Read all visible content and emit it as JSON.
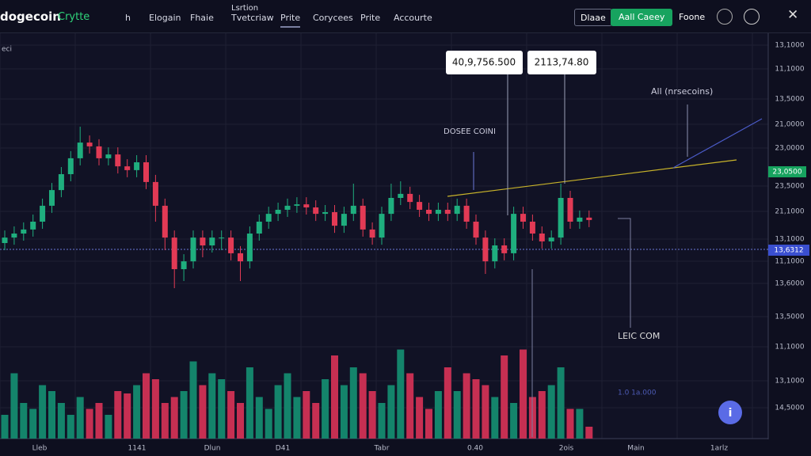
{
  "header": {
    "logo": "dogecoin",
    "brand": "Crytte",
    "nav": [
      "h",
      "Elogain",
      "Fhaie",
      "Tvetcriaw",
      "Prite",
      "Corycees",
      "Prite",
      "Accourte"
    ],
    "nav_caption": "Lsrtion",
    "buttons": [
      "Dlaae",
      "Aall Caeey",
      "Foone"
    ]
  },
  "corner_label": "eci",
  "price_axis": {
    "labels": [
      "13,1000",
      "11,1000",
      "13,5000",
      "21,0000",
      "23,0000",
      "23,5000",
      "21,1000",
      "13,1000",
      "11,1000",
      "13,6000",
      "13,5000",
      "11,1000",
      "13,1000",
      "14,5000"
    ],
    "current_tag": "23,0500",
    "line_tag": "13,6312"
  },
  "time_axis": [
    "Lleb",
    "1141",
    "Dlun",
    "D41",
    "Tabr",
    "0.40",
    "2ois",
    "Main",
    "1arlz"
  ],
  "annotations": {
    "callout_1": "40,9,756.500",
    "callout_2": "2113,74.80",
    "trend_note": "All (nrsecoins)",
    "coin_note": "DOSEE COINI",
    "lower_note": "LEIC COM",
    "faint_note": "1.0 1a.000"
  },
  "chart_data": {
    "type": "candlestick",
    "ylim": [
      0,
      100
    ],
    "up_color": "#1fae7e",
    "down_color": "#e23a55",
    "open": [
      31,
      33.3,
      35,
      36.7,
      40,
      46.7,
      53.3,
      60,
      66.7,
      73.3,
      71.7,
      66.7,
      68.3,
      63.3,
      61.7,
      65,
      56.7,
      46.7,
      33.3,
      20,
      23.3,
      33.3,
      30,
      33.3,
      33.3,
      26.7,
      23.3,
      35,
      40,
      43.3,
      45,
      46.7,
      47.3,
      46,
      43.3,
      44,
      38.3,
      43.3,
      46.7,
      36.7,
      33.3,
      43.3,
      50,
      51.7,
      48.3,
      45,
      43.3,
      45,
      43.3,
      46.7,
      40,
      33.3,
      23.3,
      30,
      26.7,
      43.3,
      40,
      35,
      31.7,
      33.3,
      50,
      40,
      41.7
    ],
    "high": [
      36.3,
      38,
      39.7,
      43,
      49.7,
      56.3,
      63,
      69.7,
      80,
      76.3,
      74.7,
      71.3,
      71.3,
      66.3,
      68,
      68,
      59.7,
      49.7,
      36.3,
      26.3,
      36.3,
      36.3,
      36.3,
      36.3,
      36.3,
      29.7,
      38,
      43,
      46.3,
      48,
      49.7,
      50.3,
      50.3,
      49,
      47,
      47,
      46.3,
      56,
      49.7,
      39.7,
      46.3,
      56,
      57,
      54.7,
      51.3,
      48,
      48,
      48,
      49.7,
      49.7,
      43,
      36.3,
      33,
      33,
      46.3,
      46.3,
      43,
      38,
      36.3,
      56,
      53,
      44.7,
      44.7
    ],
    "low": [
      28,
      30.3,
      32,
      33.7,
      37,
      43.7,
      50.3,
      57,
      63.7,
      68.7,
      63.7,
      63.7,
      60.3,
      58.7,
      58.7,
      53.7,
      40,
      28,
      12,
      15,
      20.3,
      25,
      27,
      28,
      23.7,
      15,
      20.3,
      32,
      37,
      40.3,
      42,
      43.7,
      43,
      40.3,
      40.3,
      35.3,
      35.3,
      40.3,
      33.7,
      30.3,
      30.3,
      40.3,
      47,
      45.3,
      42,
      40.3,
      40.3,
      40.3,
      40.3,
      37,
      30.3,
      18,
      20.3,
      23.7,
      23.7,
      37,
      32,
      28.7,
      28.7,
      30.3,
      37,
      37,
      37.7
    ],
    "close": [
      33.3,
      35,
      36.7,
      40,
      46.7,
      53.3,
      60,
      66.7,
      73.3,
      71.7,
      66.7,
      68.3,
      63.3,
      61.7,
      65,
      56.7,
      46.7,
      33.3,
      20,
      23.3,
      33.3,
      30,
      33.3,
      33.3,
      26.7,
      23.3,
      35,
      40,
      43.3,
      45,
      46.7,
      47.3,
      46,
      43.3,
      44,
      38.3,
      43.3,
      46.7,
      36.7,
      33.3,
      43.3,
      50,
      51.7,
      48.3,
      45,
      43.3,
      45,
      43.3,
      46.7,
      40,
      33.3,
      23.3,
      30,
      26.7,
      43.3,
      40,
      35,
      31.7,
      33.3,
      50,
      40,
      41.7,
      40.7
    ],
    "volume": {
      "ylim": [
        0,
        100
      ],
      "up_color": "#14846b",
      "down_color": "#c62f52",
      "values": [
        20,
        55,
        30,
        25,
        45,
        40,
        30,
        20,
        35,
        25,
        30,
        20,
        40,
        38,
        45,
        55,
        50,
        30,
        35,
        40,
        65,
        45,
        55,
        50,
        40,
        30,
        60,
        35,
        25,
        45,
        55,
        35,
        40,
        30,
        50,
        70,
        45,
        60,
        55,
        40,
        30,
        45,
        75,
        55,
        35,
        25,
        40,
        60,
        40,
        55,
        50,
        45,
        35,
        70,
        30,
        75,
        35,
        40,
        45,
        60,
        25,
        25,
        10
      ]
    }
  }
}
